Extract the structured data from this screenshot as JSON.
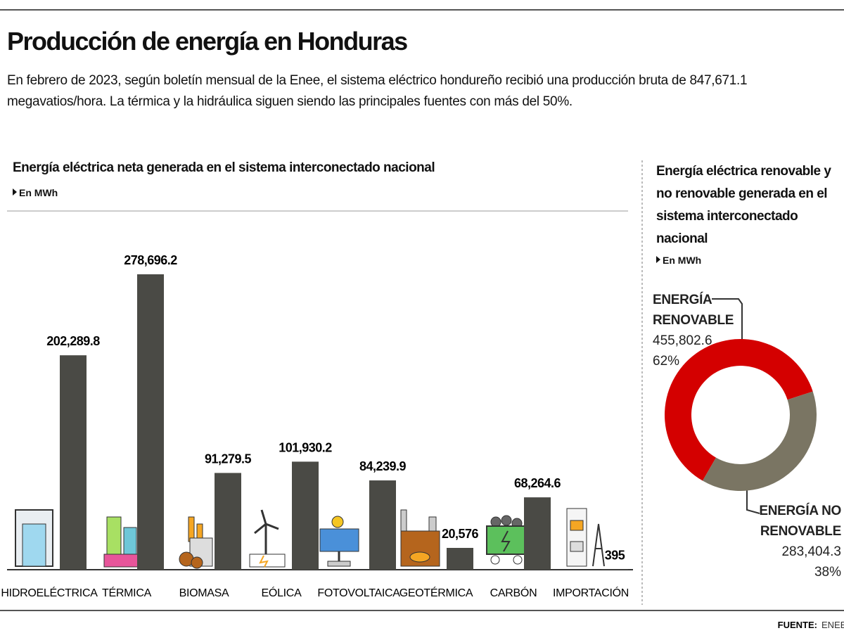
{
  "header": {
    "title": "Producción de energía en Honduras",
    "subtitle": "En febrero de 2023, según boletín mensual de la Enee, el sistema eléctrico hondureño recibió una producción bruta de 847,671.1 megavatios/hora. La térmica y la hidráulica siguen siendo las principales fuentes con más del 50%."
  },
  "chart_data": [
    {
      "type": "bar",
      "title": "Energía eléctrica neta generada en el sistema interconectado nacional",
      "unit": "En MWh",
      "categories": [
        "HIDROELÉCTRICA",
        "TÉRMICA",
        "BIOMASA",
        "EÓLICA",
        "FOTOVOLTAICA",
        "GEOTÉRMICA",
        "CARBÓN",
        "IMPORTACIÓN"
      ],
      "values": [
        202289.8,
        278696.2,
        91279.5,
        101930.2,
        84239.9,
        20576,
        68264.6,
        395
      ],
      "value_labels": [
        "202,289.8",
        "278,696.2",
        "91,279.5",
        "101,930.2",
        "84,239.9",
        "20,576",
        "68,264.6",
        "395"
      ],
      "color": "#4a4a45"
    },
    {
      "type": "pie",
      "title": "Energía eléctrica renovable y no renovable generada en el sistema interconectado nacional",
      "unit": "En MWh",
      "categories": [
        "ENERGÍA RENOVABLE",
        "ENERGÍA NO RENOVABLE"
      ],
      "values": [
        455802.6,
        283404.3
      ],
      "value_labels": [
        "455,802.6",
        "283,404.3"
      ],
      "percents": [
        62,
        38
      ],
      "percent_labels": [
        "62%",
        "38%"
      ],
      "colors": [
        "#d40000",
        "#7a7563"
      ]
    }
  ],
  "footer": {
    "source_label": "FUENTE:",
    "source": "ENEE."
  }
}
